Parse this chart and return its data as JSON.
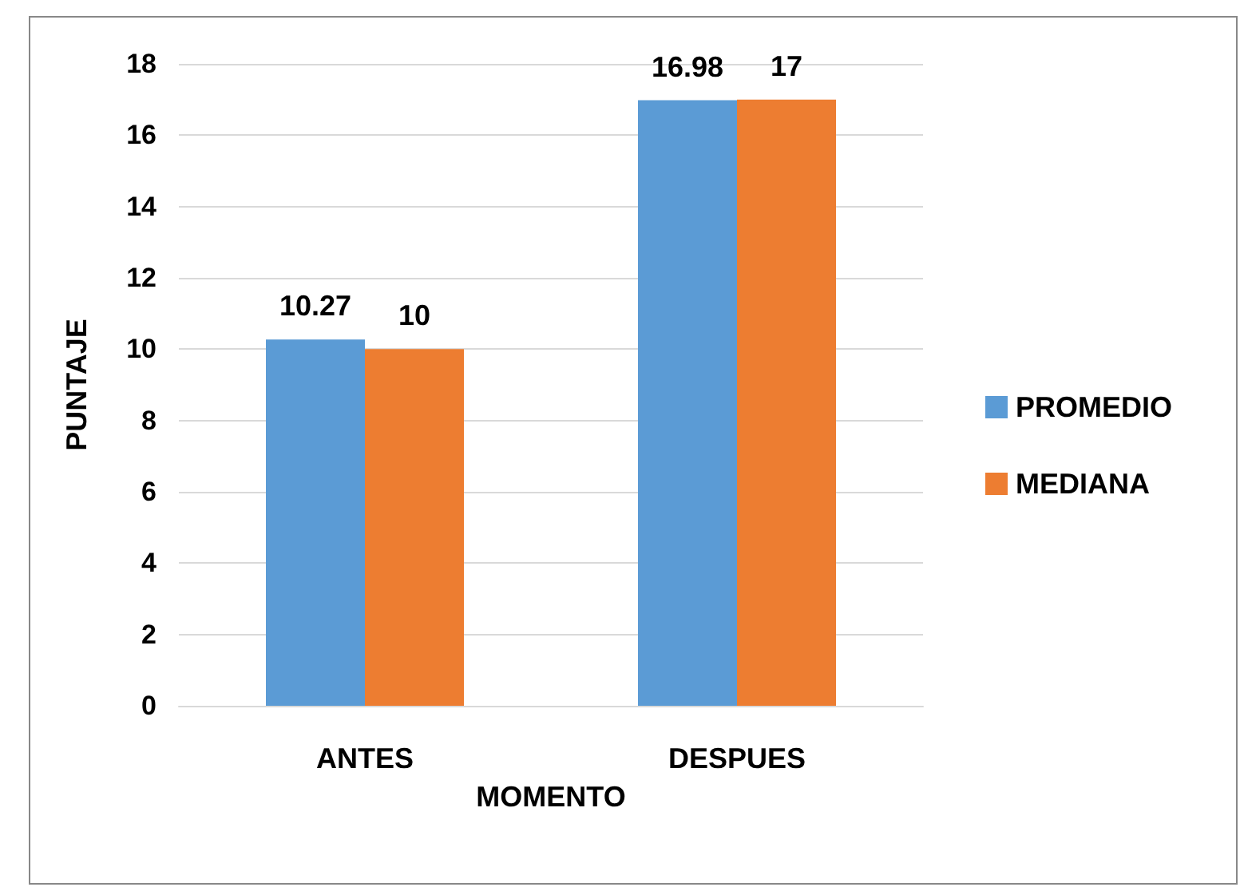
{
  "chart_data": {
    "type": "bar",
    "xlabel": "MOMENTO",
    "ylabel": "PUNTAJE",
    "categories": [
      "ANTES",
      "DESPUES"
    ],
    "series": [
      {
        "name": "PROMEDIO",
        "color": "#5b9bd5",
        "values": [
          10.27,
          16.98
        ]
      },
      {
        "name": "MEDIANA",
        "color": "#ed7d31",
        "values": [
          10,
          17
        ]
      }
    ],
    "ylim": [
      0,
      18
    ],
    "yticks": [
      0,
      2,
      4,
      6,
      8,
      10,
      12,
      14,
      16,
      18
    ],
    "grid": "y",
    "legend": "right",
    "data_labels": true
  }
}
